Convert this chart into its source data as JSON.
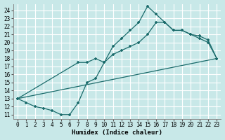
{
  "xlabel": "Humidex (Indice chaleur)",
  "xlim": [
    -0.5,
    23.5
  ],
  "ylim": [
    10.5,
    24.8
  ],
  "yticks": [
    11,
    12,
    13,
    14,
    15,
    16,
    17,
    18,
    19,
    20,
    21,
    22,
    23,
    24
  ],
  "xticks": [
    0,
    1,
    2,
    3,
    4,
    5,
    6,
    7,
    8,
    9,
    10,
    11,
    12,
    13,
    14,
    15,
    16,
    17,
    18,
    19,
    20,
    21,
    22,
    23
  ],
  "background_color": "#c8e8e8",
  "line_color": "#1a6b6b",
  "grid_color": "#ffffff",
  "line1_x": [
    0,
    1,
    2,
    3,
    4,
    5,
    6,
    7,
    8,
    9,
    10,
    11,
    12,
    13,
    14,
    15,
    16,
    17,
    18,
    19,
    20,
    21,
    22,
    23
  ],
  "line1_y": [
    13.0,
    12.5,
    12.0,
    11.8,
    11.5,
    11.0,
    11.0,
    12.5,
    15.0,
    15.5,
    17.5,
    19.5,
    20.5,
    21.5,
    22.5,
    24.5,
    23.5,
    22.5,
    21.5,
    21.5,
    21.0,
    20.5,
    20.0,
    18.0
  ],
  "line2_x": [
    0,
    7,
    8,
    9,
    10,
    11,
    12,
    13,
    14,
    15,
    16,
    17,
    18,
    19,
    20,
    21,
    22,
    23
  ],
  "line2_y": [
    13.0,
    17.5,
    17.5,
    18.0,
    17.5,
    18.5,
    19.0,
    19.5,
    20.0,
    21.0,
    22.5,
    22.5,
    21.5,
    21.5,
    21.0,
    20.8,
    20.3,
    18.0
  ],
  "line3_x": [
    0,
    23
  ],
  "line3_y": [
    13.0,
    18.0
  ]
}
